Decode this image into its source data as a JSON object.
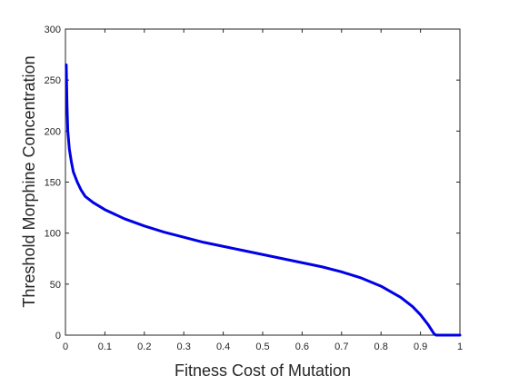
{
  "chart_data": {
    "type": "line",
    "title": "",
    "xlabel": "Fitness Cost of Mutation",
    "ylabel": "Threshold Morphine Concentration",
    "xlim": [
      0,
      1
    ],
    "ylim": [
      0,
      300
    ],
    "xticks": [
      0,
      0.1,
      0.2,
      0.3,
      0.4,
      0.5,
      0.6,
      0.7,
      0.8,
      0.9,
      1
    ],
    "yticks": [
      0,
      50,
      100,
      150,
      200,
      250,
      300
    ],
    "xtick_labels": [
      "0",
      "0.1",
      "0.2",
      "0.3",
      "0.4",
      "0.5",
      "0.6",
      "0.7",
      "0.8",
      "0.9",
      "1"
    ],
    "ytick_labels": [
      "0",
      "50",
      "100",
      "150",
      "200",
      "250",
      "300"
    ],
    "grid": false,
    "legend": "none",
    "series": [
      {
        "color": "#0000e6",
        "x": [
          0.002,
          0.004,
          0.006,
          0.01,
          0.015,
          0.02,
          0.03,
          0.04,
          0.05,
          0.07,
          0.1,
          0.15,
          0.2,
          0.25,
          0.3,
          0.35,
          0.4,
          0.45,
          0.5,
          0.55,
          0.6,
          0.65,
          0.7,
          0.75,
          0.8,
          0.85,
          0.88,
          0.9,
          0.92,
          0.93,
          0.935,
          0.94,
          0.95,
          0.97,
          1.0
        ],
        "values": [
          265,
          225,
          200,
          182,
          170,
          160,
          150,
          142,
          136,
          130,
          123,
          114,
          107,
          101,
          96,
          91,
          87,
          83,
          79,
          75,
          71,
          67,
          62,
          56,
          48,
          37,
          28,
          20,
          10,
          4,
          1,
          0,
          0,
          0,
          0
        ]
      }
    ]
  }
}
